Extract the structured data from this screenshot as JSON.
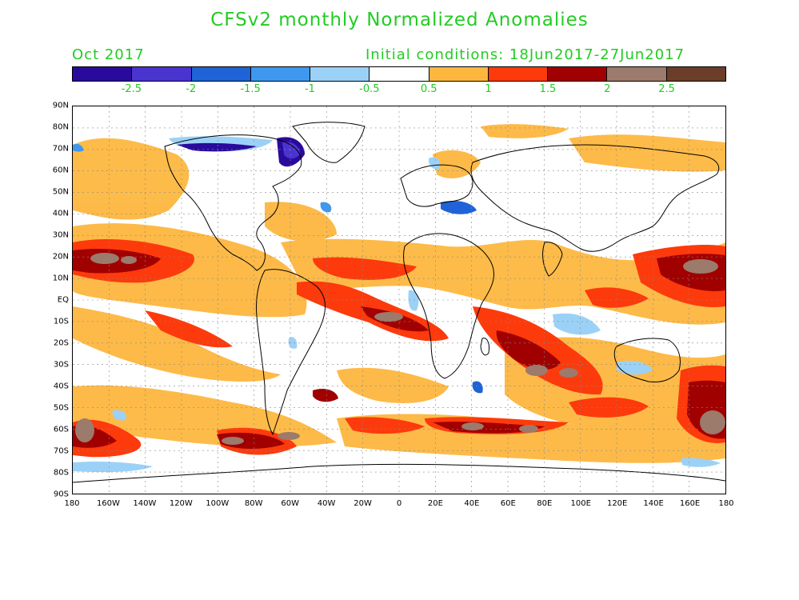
{
  "title": "CFSv2 monthly Normalized Anomalies",
  "month": "Oct 2017",
  "initial_conditions": "Initial conditions: 18Jun2017-27Jun2017",
  "colorbar": {
    "colors": [
      "#2a0a9c",
      "#4a34d0",
      "#1f63d6",
      "#3f98ef",
      "#9cd1f7",
      "#ffffff",
      "#fdb73f",
      "#fd3a0c",
      "#a10000",
      "#9c7a6c",
      "#6b3e2a"
    ],
    "labels": [
      "-2.5",
      "-2",
      "-1.5",
      "-1",
      "-0.5",
      "0.5",
      "1",
      "1.5",
      "2",
      "2.5"
    ]
  },
  "map": {
    "lat_labels": [
      "90N",
      "80N",
      "70N",
      "60N",
      "50N",
      "40N",
      "30N",
      "20N",
      "10N",
      "EQ",
      "10S",
      "20S",
      "30S",
      "40S",
      "50S",
      "60S",
      "70S",
      "80S",
      "90S"
    ],
    "lon_labels": [
      "180",
      "160W",
      "140W",
      "120W",
      "100W",
      "80W",
      "60W",
      "40W",
      "20W",
      "0",
      "20E",
      "40E",
      "60E",
      "80E",
      "100E",
      "120E",
      "140E",
      "160E",
      "180"
    ],
    "fill_colors": {
      "light_orange": "#fdb73f",
      "red": "#fd3a0c",
      "dark_red": "#a10000",
      "brown": "#9c7a6c",
      "light_blue": "#9cd1f7",
      "mid_blue": "#3f98ef",
      "blue": "#1f63d6",
      "dark_blue": "#2a0a9c"
    }
  }
}
